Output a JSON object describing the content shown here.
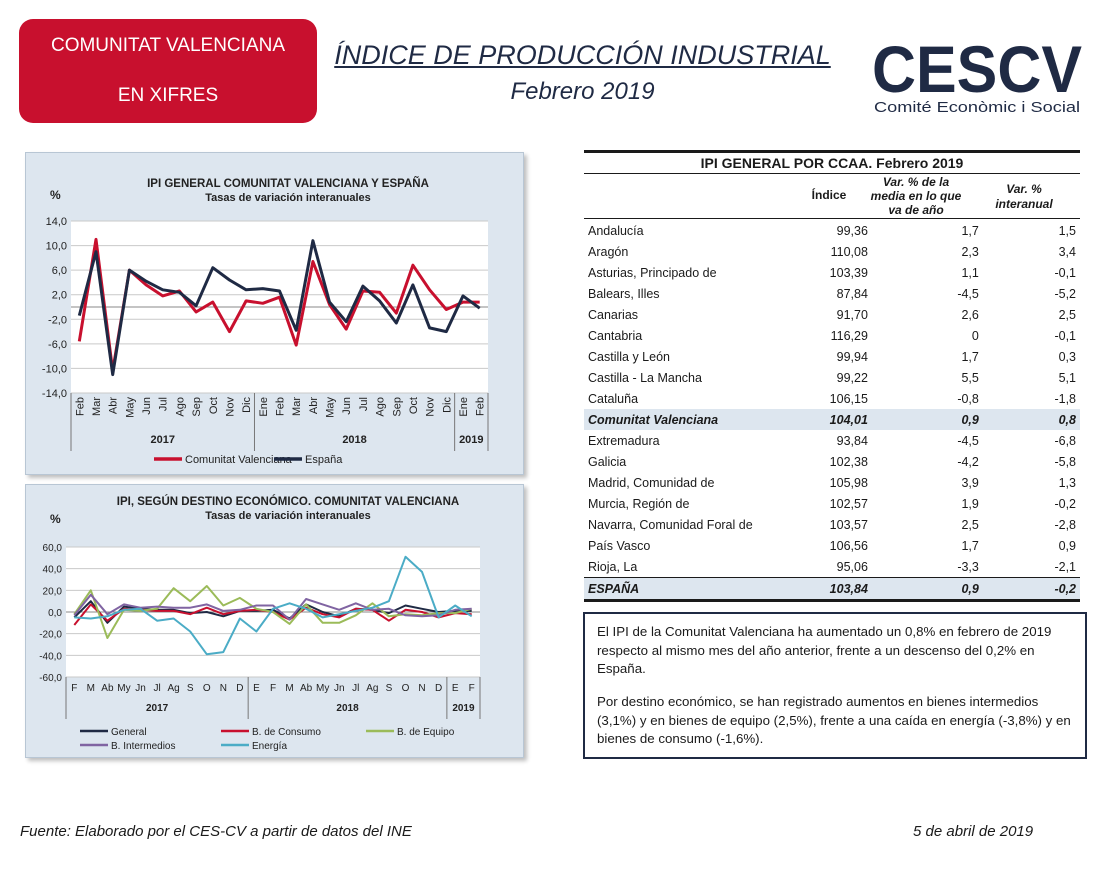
{
  "badge": {
    "line1": "COMUNITAT VALENCIANA",
    "line2": "EN XIFRES"
  },
  "header": {
    "title": "ÍNDICE DE PRODUCCIÓN INDUSTRIAL",
    "subtitle": "Febrero 2019"
  },
  "logo": {
    "text": "CESCV",
    "tagline": "Comité Econòmic i Social"
  },
  "colors": {
    "red": "#c8102e",
    "navy": "#1f2a44",
    "panel": "#dde6ef",
    "green": "#9bbb59",
    "purple": "#8064a2",
    "cyan": "#4bacc6"
  },
  "chart_data": [
    {
      "type": "line",
      "title": "IPI GENERAL  COMUNITAT  VALENCIANA Y ESPAÑA",
      "subtitle": "Tasas  de variación  interanuales",
      "ylabel": "%",
      "ylim": [
        -14,
        14
      ],
      "yticks": [
        "14,0",
        "10,0",
        "6,0",
        "2,0",
        "-2,0",
        "-6,0",
        "-10,0",
        "-14,0"
      ],
      "categories": [
        "Feb",
        "Mar",
        "Abr",
        "May",
        "Jun",
        "Jul",
        "Ago",
        "Sep",
        "Oct",
        "Nov",
        "Dic",
        "Ene",
        "Feb",
        "Mar",
        "Abr",
        "May",
        "Jun",
        "Jul",
        "Ago",
        "Sep",
        "Oct",
        "Nov",
        "Dic",
        "Ene",
        "Feb"
      ],
      "year_groups": [
        "2017",
        "2018",
        "2019"
      ],
      "series": [
        {
          "name": "Comunitat Valenciana",
          "color": "#c8102e",
          "values": [
            -5.6,
            11.0,
            -10.4,
            6.0,
            3.6,
            1.8,
            2.6,
            -0.8,
            0.8,
            -4.0,
            1.0,
            0.6,
            1.6,
            -6.2,
            7.4,
            0.4,
            -3.6,
            2.6,
            2.4,
            -1.0,
            6.8,
            2.8,
            -0.4,
            0.8,
            0.8
          ]
        },
        {
          "name": "España",
          "color": "#1f2a44",
          "values": [
            -1.4,
            9.0,
            -11.0,
            6.0,
            4.2,
            2.8,
            2.4,
            0.2,
            6.4,
            4.4,
            2.8,
            3.0,
            2.6,
            -3.8,
            10.8,
            0.8,
            -2.4,
            3.4,
            1.0,
            -2.6,
            3.6,
            -3.4,
            -4.0,
            1.8,
            -0.2
          ]
        }
      ]
    },
    {
      "type": "line",
      "title": "IPI, SEGÚN DESTINO ECONÓMICO. COMUNITAT VALENCIANA",
      "subtitle": "Tasas de variación interanuales",
      "ylabel": "%",
      "ylim": [
        -60,
        60
      ],
      "yticks": [
        "60,0",
        "40,0",
        "20,0",
        "0,0",
        "-20,0",
        "-40,0",
        "-60,0"
      ],
      "categories": [
        "F",
        "M",
        "Ab",
        "My",
        "Jn",
        "Jl",
        "Ag",
        "S",
        "O",
        "N",
        "D",
        "E",
        "F",
        "M",
        "Ab",
        "My",
        "Jn",
        "Jl",
        "Ag",
        "S",
        "O",
        "N",
        "D",
        "E",
        "F"
      ],
      "year_groups": [
        "2017",
        "2018",
        "2019"
      ],
      "series": [
        {
          "name": "General",
          "color": "#1f2a44",
          "values": [
            -5,
            10,
            -10,
            5,
            3,
            2,
            2,
            -1,
            0,
            -4,
            1,
            1,
            2,
            -6,
            7,
            0,
            -4,
            3,
            2,
            -1,
            6,
            3,
            0,
            1,
            1
          ]
        },
        {
          "name": "B. de Consumo",
          "color": "#c8102e",
          "values": [
            -12,
            7,
            -8,
            3,
            2,
            1,
            1,
            -2,
            4,
            -2,
            1,
            2,
            0,
            -7,
            4,
            -2,
            -5,
            3,
            2,
            -8,
            2,
            0,
            -5,
            -1,
            -2
          ]
        },
        {
          "name": "B. de Equipo",
          "color": "#9bbb59",
          "values": [
            -2,
            20,
            -24,
            2,
            1,
            3,
            22,
            10,
            24,
            6,
            13,
            3,
            0,
            -11,
            7,
            -10,
            -10,
            -3,
            8,
            -4,
            -2,
            -3,
            -1,
            -1,
            3
          ]
        },
        {
          "name": "B. Intermedios",
          "color": "#8064a2",
          "values": [
            -3,
            16,
            -2,
            7,
            4,
            5,
            4,
            4,
            7,
            1,
            2,
            6,
            6,
            -7,
            12,
            7,
            2,
            8,
            2,
            3,
            -3,
            -4,
            -3,
            2,
            3
          ]
        },
        {
          "name": "Energía",
          "color": "#4bacc6",
          "values": [
            -5,
            -6,
            -4,
            2,
            3,
            -8,
            -6,
            -18,
            -39,
            -37,
            -6,
            -18,
            3,
            8,
            3,
            -5,
            -2,
            1,
            4,
            10,
            51,
            37,
            -5,
            6,
            -4
          ]
        }
      ]
    }
  ],
  "table": {
    "title": "IPI GENERAL POR CCAA. Febrero 2019",
    "columns": [
      "Índice",
      "Var. % de la media en lo que va de año",
      "Var. % interanual"
    ],
    "rows": [
      {
        "name": "Andalucía",
        "indice": "99,36",
        "media": "1,7",
        "inter": "1,5"
      },
      {
        "name": "Aragón",
        "indice": "110,08",
        "media": "2,3",
        "inter": "3,4"
      },
      {
        "name": "Asturias, Principado de",
        "indice": "103,39",
        "media": "1,1",
        "inter": "-0,1"
      },
      {
        "name": "Balears, Illes",
        "indice": "87,84",
        "media": "-4,5",
        "inter": "-5,2"
      },
      {
        "name": "Canarias",
        "indice": "91,70",
        "media": "2,6",
        "inter": "2,5"
      },
      {
        "name": "Cantabria",
        "indice": "116,29",
        "media": "0",
        "inter": "-0,1"
      },
      {
        "name": "Castilla y León",
        "indice": "99,94",
        "media": "1,7",
        "inter": "0,3"
      },
      {
        "name": "Castilla - La Mancha",
        "indice": "99,22",
        "media": "5,5",
        "inter": "5,1"
      },
      {
        "name": "Cataluña",
        "indice": "106,15",
        "media": "-0,8",
        "inter": "-1,8"
      },
      {
        "name": "Comunitat Valenciana",
        "indice": "104,01",
        "media": "0,9",
        "inter": "0,8"
      },
      {
        "name": "Extremadura",
        "indice": "93,84",
        "media": "-4,5",
        "inter": "-6,8"
      },
      {
        "name": "Galicia",
        "indice": "102,38",
        "media": "-4,2",
        "inter": "-5,8"
      },
      {
        "name": "Madrid, Comunidad de",
        "indice": "105,98",
        "media": "3,9",
        "inter": "1,3"
      },
      {
        "name": "Murcia, Región de",
        "indice": "102,57",
        "media": "1,9",
        "inter": "-0,2"
      },
      {
        "name": "Navarra, Comunidad Foral de",
        "indice": "103,57",
        "media": "2,5",
        "inter": "-2,8"
      },
      {
        "name": "País Vasco",
        "indice": "106,56",
        "media": "1,7",
        "inter": "0,9"
      },
      {
        "name": "Rioja, La",
        "indice": "95,06",
        "media": "-3,3",
        "inter": "-2,1"
      },
      {
        "name": "ESPAÑA",
        "indice": "103,84",
        "media": "0,9",
        "inter": "-0,2"
      }
    ]
  },
  "summary": {
    "p1": "El IPI de la Comunitat Valenciana ha aumentado un 0,8% en febrero de 2019 respecto al mismo mes del año anterior, frente a un descenso del 0,2% en España.",
    "p2": "Por destino económico, se han registrado aumentos en bienes intermedios (3,1%) y en bienes de equipo (2,5%), frente a una caída en energía (-3,8%) y en bienes de consumo (-1,6%)."
  },
  "footer": {
    "source": "Fuente: Elaborado por el CES-CV a partir de datos del INE",
    "date": "5 de abril de 2019"
  }
}
